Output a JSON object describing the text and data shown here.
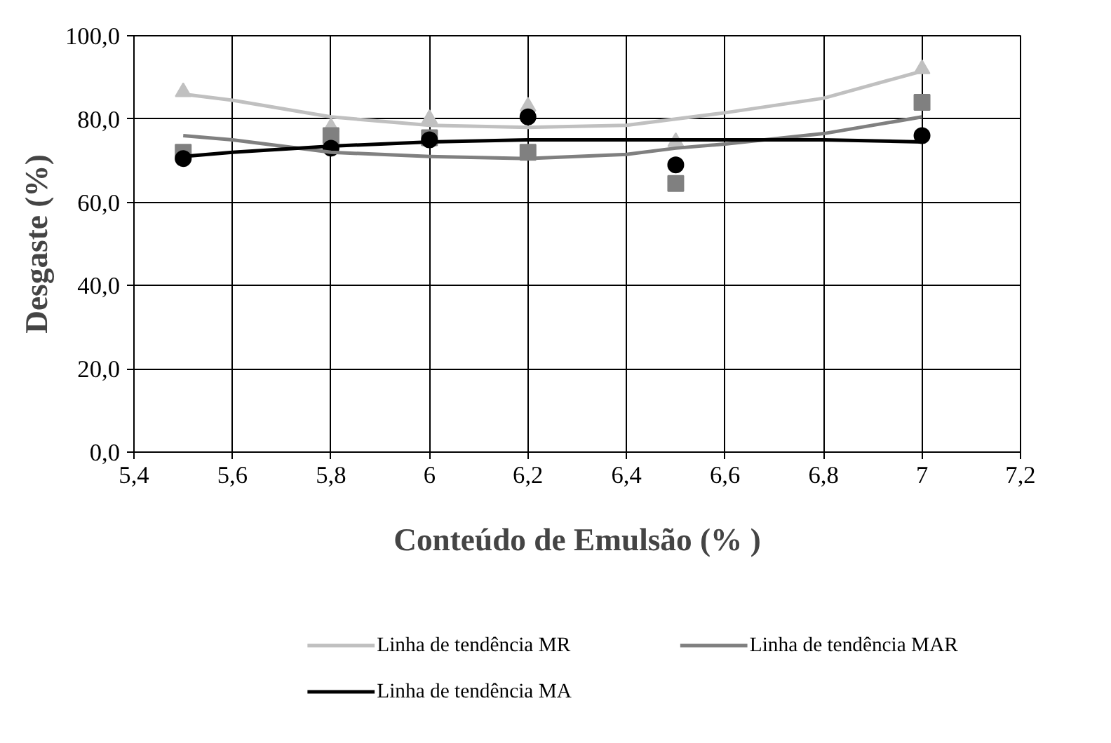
{
  "chart_data": {
    "type": "scatter",
    "xlabel": "Conteúdo de Emulsão (% )",
    "ylabel": "Desgaste (%)",
    "xlim": [
      5.4,
      7.2
    ],
    "ylim": [
      0,
      100
    ],
    "xticks": [
      {
        "value": 5.4,
        "label": "5,4"
      },
      {
        "value": 5.6,
        "label": "5,6"
      },
      {
        "value": 5.8,
        "label": "5,8"
      },
      6,
      {
        "value": 6.2,
        "label": "6,2"
      },
      {
        "value": 6.4,
        "label": "6,4"
      },
      {
        "value": 6.6,
        "label": "6,6"
      },
      {
        "value": 6.8,
        "label": "6,8"
      },
      7,
      {
        "value": 7.2,
        "label": "7,2"
      }
    ],
    "yticks": [
      {
        "value": 0,
        "label": "0,0"
      },
      {
        "value": 20,
        "label": "20,0"
      },
      {
        "value": 40,
        "label": "40,0"
      },
      {
        "value": 60,
        "label": "60,0"
      },
      {
        "value": 80,
        "label": "80,0"
      },
      {
        "value": 100,
        "label": "100,0"
      }
    ],
    "grid": true,
    "legend": "bottom",
    "series": [
      {
        "type": "scatter",
        "marker": "triangle",
        "color": "#c0c0c0",
        "x": [
          5.5,
          5.8,
          6,
          6.2,
          6.5,
          7
        ],
        "values": [
          86.5,
          78,
          80,
          83,
          74.5,
          92
        ]
      },
      {
        "type": "scatter",
        "marker": "square",
        "color": "#808080",
        "x": [
          5.5,
          5.8,
          6,
          6.2,
          6.5,
          7
        ],
        "values": [
          72,
          76,
          75.5,
          72,
          64.5,
          84
        ]
      },
      {
        "type": "scatter",
        "marker": "circle",
        "color": "#000000",
        "x": [
          5.5,
          5.8,
          6,
          6.2,
          6.5,
          7
        ],
        "values": [
          70.5,
          73,
          75,
          80.5,
          69,
          76
        ]
      },
      {
        "type": "line",
        "name": "Linha de tendência MR",
        "color": "#c0c0c0",
        "x": [
          5.5,
          5.6,
          5.8,
          6,
          6.2,
          6.4,
          6.5,
          6.6,
          6.8,
          7
        ],
        "values": [
          86,
          84.5,
          80.5,
          78.5,
          78,
          78.5,
          80,
          81.5,
          85,
          91.5
        ]
      },
      {
        "type": "line",
        "name": "Linha de tendência MAR",
        "color": "#808080",
        "x": [
          5.5,
          5.6,
          5.8,
          6,
          6.2,
          6.4,
          6.5,
          6.6,
          6.8,
          7
        ],
        "values": [
          76,
          75,
          72,
          71,
          70.5,
          71.5,
          73,
          74,
          76.5,
          80.5
        ]
      },
      {
        "type": "line",
        "name": "Linha de tendência MA",
        "color": "#000000",
        "x": [
          5.5,
          5.6,
          5.8,
          6,
          6.2,
          6.5,
          6.8,
          7
        ],
        "values": [
          71,
          72,
          73.5,
          74.5,
          75,
          75,
          75,
          74.5
        ]
      }
    ]
  }
}
